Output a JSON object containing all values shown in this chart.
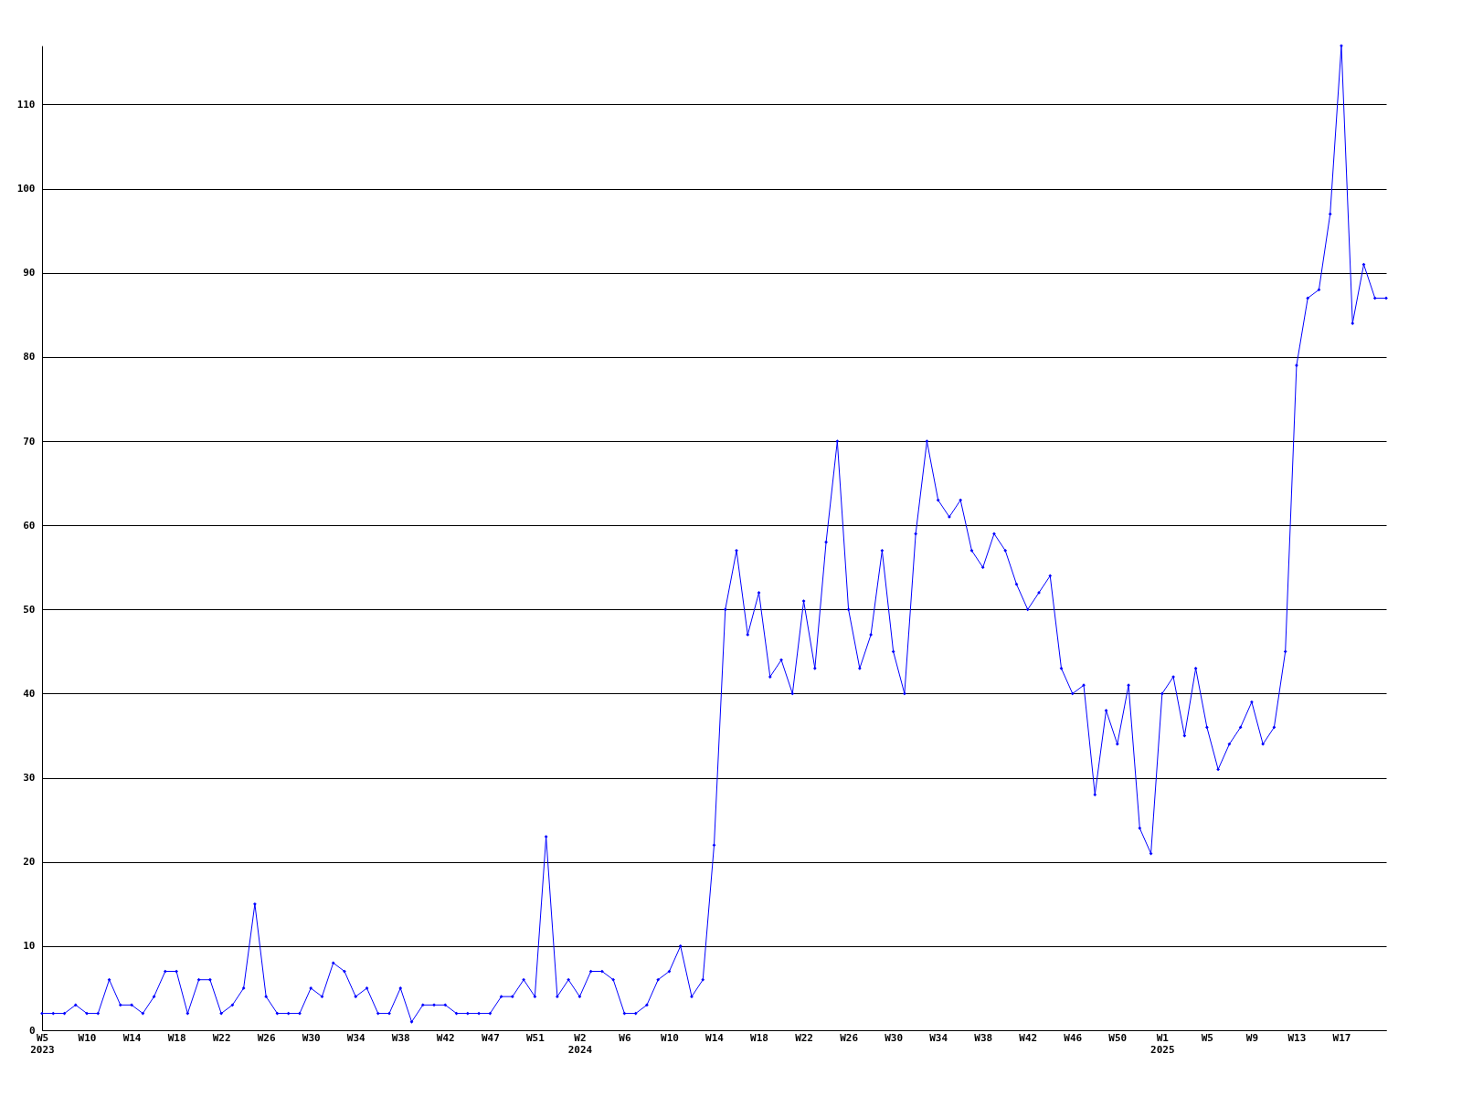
{
  "chart_data": {
    "type": "line",
    "categories": [
      "W5\n2023",
      null,
      null,
      null,
      "W10",
      null,
      null,
      null,
      "W14",
      null,
      null,
      null,
      "W18",
      null,
      null,
      null,
      "W22",
      null,
      null,
      null,
      "W26",
      null,
      null,
      null,
      "W30",
      null,
      null,
      null,
      "W34",
      null,
      null,
      null,
      "W38",
      null,
      null,
      null,
      "W42",
      null,
      null,
      null,
      "W47",
      null,
      null,
      null,
      "W51",
      null,
      null,
      null,
      "W2\n2024",
      null,
      null,
      null,
      "W6",
      null,
      null,
      null,
      "W10",
      null,
      null,
      null,
      "W14",
      null,
      null,
      null,
      "W18",
      null,
      null,
      null,
      "W22",
      null,
      null,
      null,
      "W26",
      null,
      null,
      null,
      "W30",
      null,
      null,
      null,
      "W34",
      null,
      null,
      null,
      "W38",
      null,
      null,
      null,
      "W42",
      null,
      null,
      null,
      "W46",
      null,
      null,
      null,
      "W50",
      null,
      null,
      null,
      "W1\n2025",
      null,
      null,
      null,
      "W5",
      null,
      null,
      null,
      "W9",
      null,
      null,
      null,
      "W13",
      null,
      null,
      null,
      "W17",
      null,
      null,
      null,
      null
    ],
    "series": [
      {
        "color": "#0000ff",
        "values": [
          2,
          2,
          2,
          3,
          2,
          2,
          6,
          3,
          3,
          2,
          4,
          7,
          7,
          2,
          6,
          6,
          2,
          3,
          5,
          15,
          4,
          2,
          2,
          2,
          5,
          4,
          8,
          7,
          4,
          5,
          2,
          2,
          5,
          1,
          3,
          3,
          3,
          2,
          2,
          2,
          2,
          4,
          4,
          6,
          4,
          23,
          4,
          6,
          4,
          7,
          7,
          6,
          2,
          2,
          3,
          6,
          7,
          10,
          4,
          6,
          22,
          50,
          57,
          47,
          52,
          42,
          44,
          40,
          51,
          43,
          58,
          70,
          50,
          43,
          47,
          57,
          45,
          40,
          59,
          70,
          63,
          61,
          63,
          57,
          55,
          59,
          57,
          53,
          50,
          52,
          54,
          43,
          40,
          41,
          28,
          38,
          34,
          41,
          24,
          21,
          40,
          42,
          35,
          43,
          36,
          31,
          34,
          36,
          39,
          34,
          36,
          45,
          79,
          87,
          88,
          97,
          117,
          84,
          91,
          87,
          87
        ]
      }
    ],
    "ylim": [
      0,
      117
    ],
    "yticks": [
      0,
      10,
      20,
      30,
      40,
      50,
      60,
      70,
      80,
      90,
      100,
      110
    ],
    "grid": "y",
    "marker": "diamond",
    "line_style": "solid"
  }
}
